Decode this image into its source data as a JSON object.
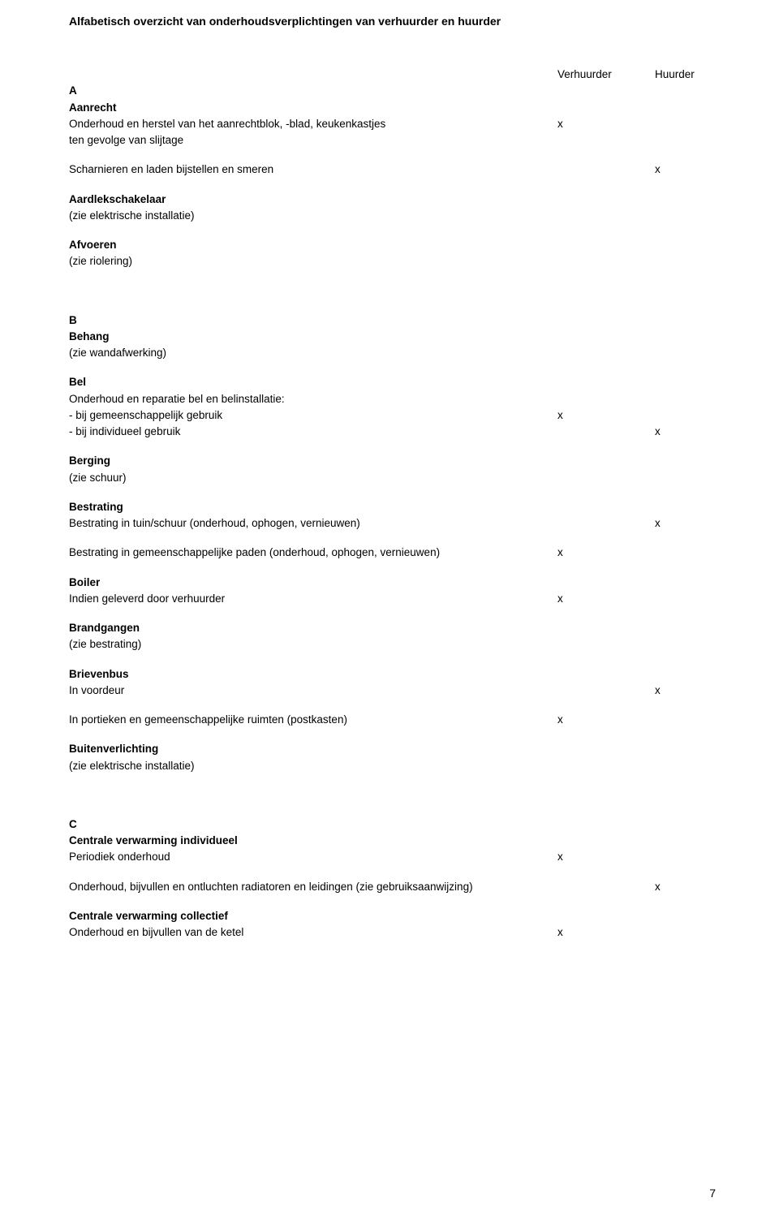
{
  "title": "Alfabetisch overzicht van onderhoudsverplichtingen van verhuurder en huurder",
  "headers": {
    "verhuurder": "Verhuurder",
    "huurder": "Huurder"
  },
  "mark": "x",
  "sections": {
    "A": {
      "letter": "A",
      "aanrecht": {
        "h": "Aanrecht",
        "l1": "Onderhoud en herstel van het aanrechtblok, -blad, keukenkastjes",
        "l2": "ten gevolge van slijtage",
        "l3": "Scharnieren en laden bijstellen en smeren"
      },
      "aardlek": {
        "h": "Aardlekschakelaar",
        "l1": "(zie elektrische installatie)"
      },
      "afvoeren": {
        "h": "Afvoeren",
        "l1": "(zie riolering)"
      }
    },
    "B": {
      "letter": "B",
      "behang": {
        "h": "Behang",
        "l1": "(zie wandafwerking)"
      },
      "bel": {
        "h": "Bel",
        "l1": "Onderhoud en reparatie bel en belinstallatie:",
        "l2": "- bij gemeenschappelijk gebruik",
        "l3": "- bij individueel gebruik"
      },
      "berging": {
        "h": "Berging",
        "l1": "(zie schuur)"
      },
      "bestrating": {
        "h": "Bestrating",
        "l1": "Bestrating in tuin/schuur (onderhoud, ophogen, vernieuwen)",
        "l2": "Bestrating in gemeenschappelijke paden (onderhoud, ophogen, vernieuwen)"
      },
      "boiler": {
        "h": "Boiler",
        "l1": "Indien geleverd door verhuurder"
      },
      "brandgangen": {
        "h": "Brandgangen",
        "l1": "(zie bestrating)"
      },
      "brievenbus": {
        "h": "Brievenbus",
        "l1": "In voordeur",
        "l2": "In portieken en gemeenschappelijke ruimten (postkasten)"
      },
      "buitenverlichting": {
        "h": "Buitenverlichting",
        "l1": "(zie elektrische installatie)"
      }
    },
    "C": {
      "letter": "C",
      "cv_ind": {
        "h": "Centrale verwarming individueel",
        "l1": "Periodiek onderhoud",
        "l2": "Onderhoud, bijvullen en ontluchten radiatoren en leidingen (zie gebruiksaanwijzing)"
      },
      "cv_col": {
        "h": "Centrale verwarming collectief",
        "l1": "Onderhoud en bijvullen van de ketel"
      }
    }
  },
  "page_number": "7"
}
